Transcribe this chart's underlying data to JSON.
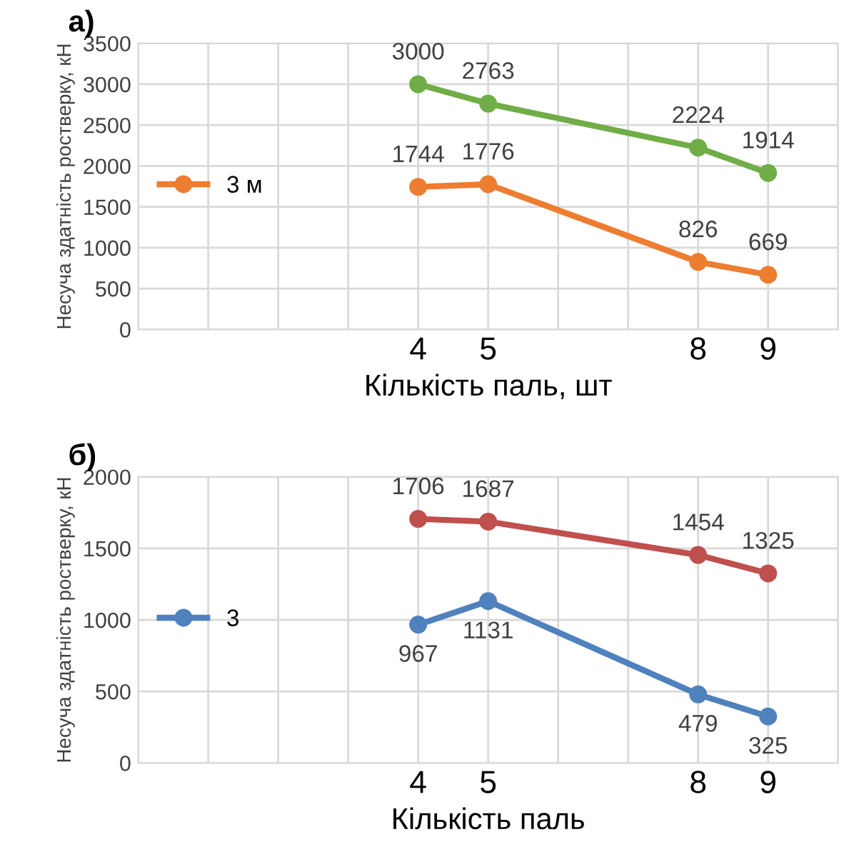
{
  "chart_data": [
    {
      "type": "line",
      "title": "а)",
      "xlabel": "Кількість паль, шт",
      "ylabel": "Несуча здатність ростверку, кН",
      "x": [
        4,
        5,
        8,
        9
      ],
      "xlim": [
        0,
        10
      ],
      "xticks": [
        {
          "value": 0,
          "label": null
        },
        {
          "value": 1,
          "label": null
        },
        {
          "value": 2,
          "label": null
        },
        {
          "value": 3,
          "label": null
        },
        4,
        5,
        {
          "value": 6,
          "label": null
        },
        {
          "value": 7,
          "label": null
        },
        8,
        9,
        {
          "value": 10,
          "label": null
        }
      ],
      "ylim": [
        0,
        3500
      ],
      "yticks": [
        0,
        500,
        1000,
        1500,
        2000,
        2500,
        3000,
        3500
      ],
      "series": [
        {
          "color": "#70ad47",
          "values": [
            3000,
            2763,
            2224,
            1914
          ]
        },
        {
          "name": "3 м",
          "color": "#ed7d31",
          "values": [
            1744,
            1776,
            826,
            669
          ]
        }
      ],
      "data_labels": true,
      "grid": true,
      "legend": "left",
      "marker": "circle",
      "line_style": "solid"
    },
    {
      "type": "line",
      "title": "б)",
      "xlabel": "Кількість паль",
      "ylabel": "Несуча здатність ростверку, кН",
      "x": [
        4,
        5,
        8,
        9
      ],
      "xlim": [
        0,
        10
      ],
      "xticks": [
        {
          "value": 0,
          "label": null
        },
        {
          "value": 1,
          "label": null
        },
        {
          "value": 2,
          "label": null
        },
        {
          "value": 3,
          "label": null
        },
        4,
        5,
        {
          "value": 6,
          "label": null
        },
        {
          "value": 7,
          "label": null
        },
        8,
        9,
        {
          "value": 10,
          "label": null
        }
      ],
      "ylim": [
        0,
        2000
      ],
      "yticks": [
        0,
        500,
        1000,
        1500,
        2000
      ],
      "series": [
        {
          "color": "#c0504d",
          "values": [
            1706,
            1687,
            1454,
            1325
          ]
        },
        {
          "name": "3",
          "color": "#4f81bd",
          "values": [
            967,
            1131,
            479,
            325
          ]
        }
      ],
      "data_labels": true,
      "grid": true,
      "legend": "left",
      "marker": "circle",
      "line_style": "solid"
    }
  ]
}
